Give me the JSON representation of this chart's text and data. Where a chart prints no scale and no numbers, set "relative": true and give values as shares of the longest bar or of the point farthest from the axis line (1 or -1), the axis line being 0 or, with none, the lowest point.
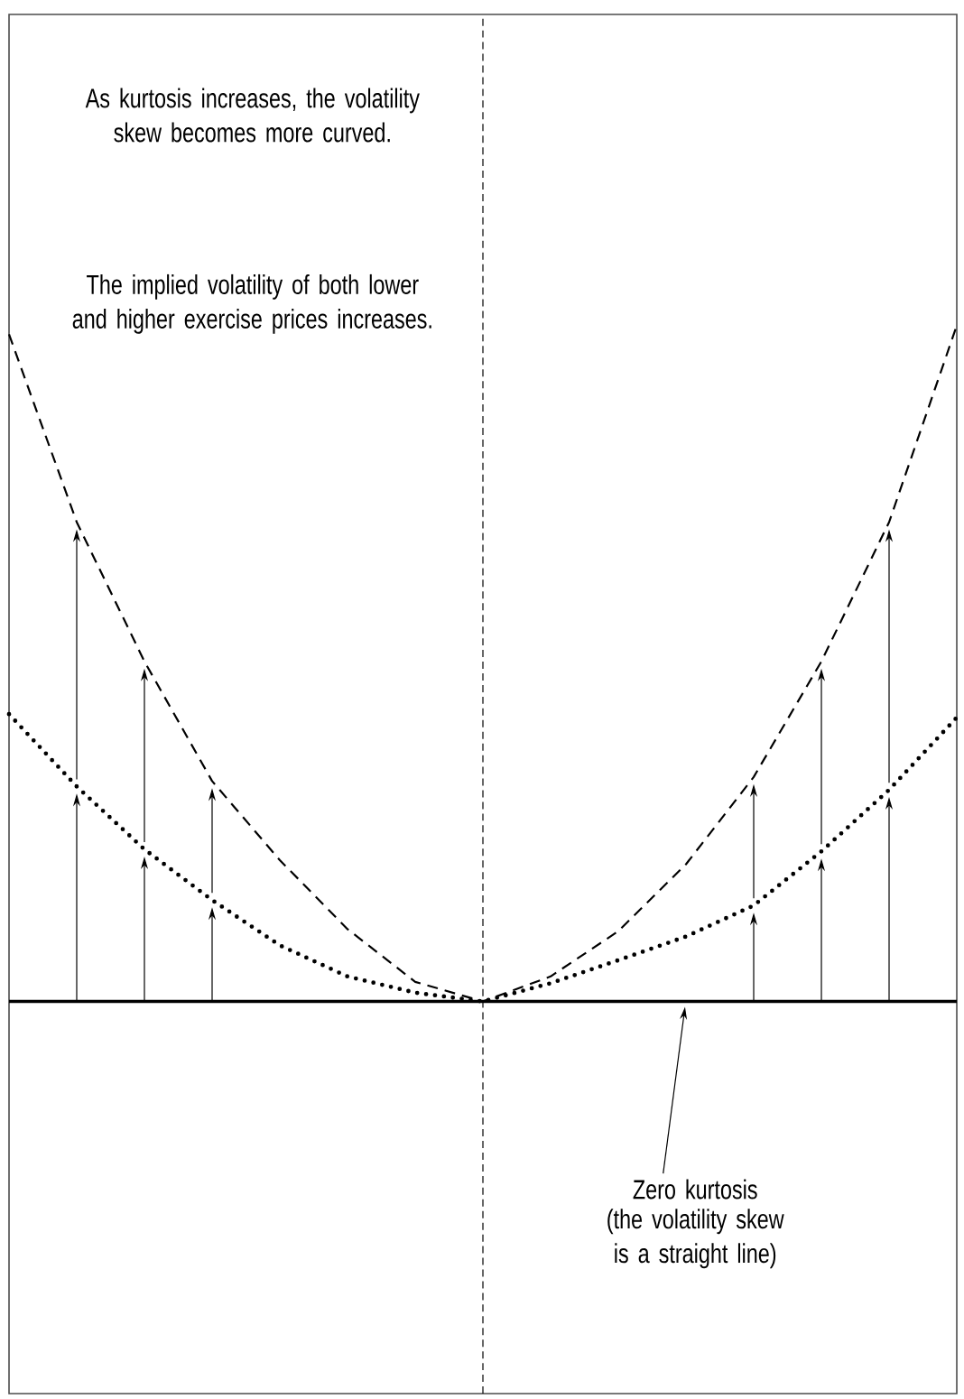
{
  "chart_data": {
    "type": "line",
    "relative": true,
    "categories": [
      null,
      null,
      null,
      null,
      null,
      null,
      null,
      null,
      null,
      null,
      null,
      null,
      null,
      null,
      null
    ],
    "annotations": [
      "As kurtosis increases, the volatility skew becomes more curved.",
      "The implied volatility of both lower and higher exercise prices increases.",
      "Zero kurtosis",
      "(the volatility skew is a straight line)"
    ],
    "series": [
      {
        "color": "#000000",
        "line_style": "solid",
        "values": [
          0,
          0,
          0,
          0,
          0,
          0,
          0,
          0,
          0,
          0,
          0,
          0,
          0,
          0,
          0
        ]
      },
      {
        "color": "#000000",
        "line_style": "dotted",
        "values": [
          0.425,
          0.318,
          0.225,
          0.15,
          0.083,
          0.037,
          0.013,
          0,
          0.027,
          0.061,
          0.096,
          0.142,
          0.222,
          0.313,
          0.42
        ]
      },
      {
        "color": "#000000",
        "line_style": "dashed",
        "values": [
          0.987,
          0.709,
          0.503,
          0.326,
          0.209,
          0.107,
          0.029,
          0,
          0.037,
          0.104,
          0.203,
          0.332,
          0.503,
          0.709,
          1
        ]
      }
    ],
    "ref_lines": [
      {
        "axis": "x",
        "line_style": "dashed",
        "color": "#000000"
      }
    ]
  }
}
